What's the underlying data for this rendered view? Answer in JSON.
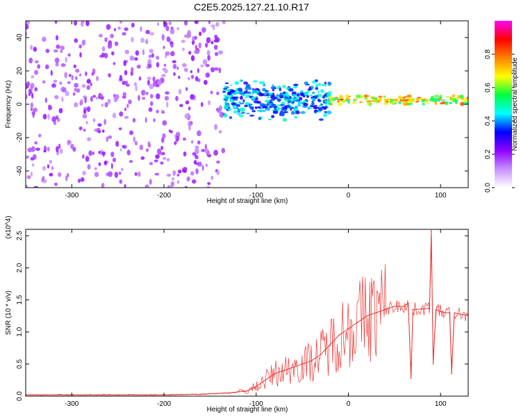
{
  "title": "C2E5.2025.127.21.10.R17",
  "chart_data": [
    {
      "type": "heatmap",
      "xlabel": "Height of straight line (km)",
      "ylabel": "Frequency (Hz)",
      "xlim": [
        -350,
        130
      ],
      "ylim": [
        -50,
        50
      ],
      "xticks": [
        -300,
        -200,
        -100,
        0,
        100
      ],
      "yticks": [
        -40,
        -20,
        0,
        20,
        40
      ],
      "colorbar": {
        "label": "Normalized spectral amplitude",
        "range": [
          0.0,
          1.0
        ],
        "ticks": [
          "0.0",
          "0.2",
          "0.4",
          "0.6",
          "0.8"
        ],
        "colors": [
          "#ffffff",
          "#c890ff",
          "#9000ff",
          "#0000ff",
          "#00ffff",
          "#00ff40",
          "#ffff00",
          "#ff8000",
          "#ff0000",
          "#ff00ff"
        ]
      },
      "regions": [
        {
          "x_range": [
            -350,
            -135
          ],
          "freq_range": [
            -50,
            50
          ],
          "amplitude": 0.1,
          "pattern": "broadband speckle"
        },
        {
          "x_range": [
            -135,
            -20
          ],
          "freq_range": [
            -10,
            15
          ],
          "amplitude": 0.3,
          "pattern": "band near 0 Hz"
        },
        {
          "x_range": [
            -20,
            130
          ],
          "freq_range": [
            0,
            5
          ],
          "amplitude": 0.5,
          "pattern": "narrow line at ~2 Hz"
        }
      ]
    },
    {
      "type": "line",
      "xlabel": "Height of straight line (km)",
      "ylabel": "SNR (10 * v/v)",
      "multiplier": "(x10^4)",
      "xlim": [
        -350,
        130
      ],
      "ylim": [
        0,
        2.6
      ],
      "xticks": [
        -300,
        -200,
        -100,
        0,
        100
      ],
      "yticks": [
        0.0,
        0.5,
        1.0,
        1.5,
        2.0,
        2.5
      ],
      "color": "#e8322f",
      "x": [
        -350,
        -300,
        -250,
        -200,
        -160,
        -130,
        -110,
        -100,
        -90,
        -80,
        -70,
        -60,
        -50,
        -40,
        -30,
        -20,
        -10,
        0,
        10,
        20,
        30,
        40,
        50,
        60,
        65,
        68,
        70,
        80,
        88,
        90,
        92,
        95,
        100,
        105,
        110,
        112,
        115,
        120,
        130
      ],
      "values": [
        0.02,
        0.02,
        0.02,
        0.02,
        0.03,
        0.05,
        0.08,
        0.15,
        0.25,
        0.35,
        0.4,
        0.45,
        0.5,
        0.55,
        0.65,
        0.8,
        0.95,
        1.05,
        1.15,
        1.25,
        1.3,
        1.35,
        1.4,
        1.4,
        1.45,
        0.28,
        1.35,
        1.36,
        1.37,
        2.58,
        0.5,
        1.35,
        1.32,
        1.3,
        1.3,
        0.35,
        1.3,
        1.28,
        1.26
      ]
    }
  ]
}
